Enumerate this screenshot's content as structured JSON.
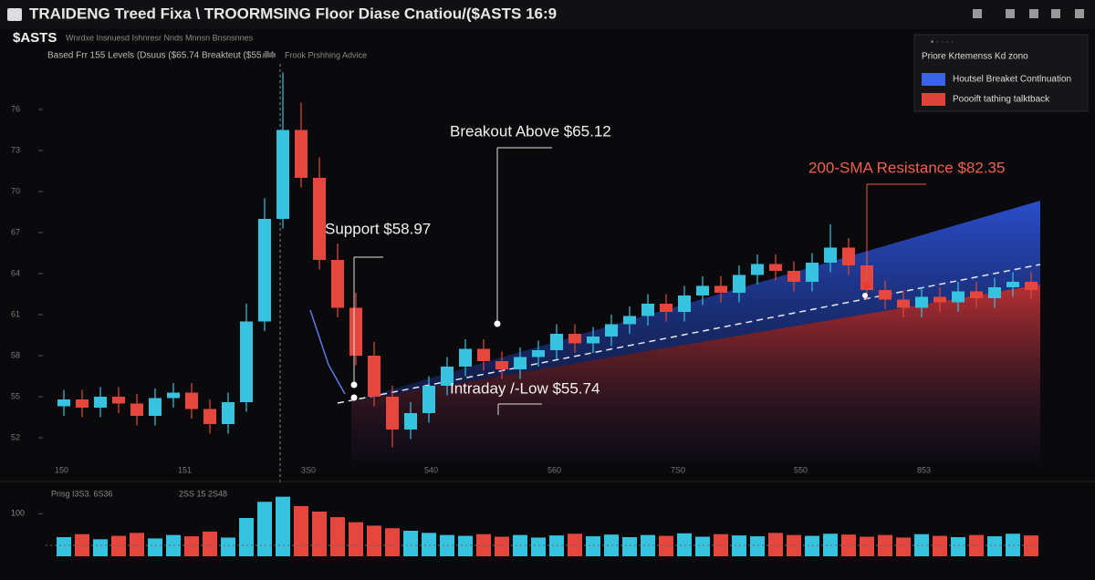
{
  "header": {
    "title": "TRAIDENG Treed Fixa \\ TROORMSING Floor Diase Cnatiou/($ASTS 16:9",
    "ticker": "$ASTS",
    "menu": "Wnrdxe   Insnuesd   Ishnresr   Nnds   Mnnsn   Bnsnsnnes",
    "subtitle": "Based Frr 155 Levels  (Dsuus ($65.74  Breakteut ($55.74",
    "subnote": "Frook Prshhing Advice"
  },
  "legend": {
    "title": "Priore   Krtemenss Kd zono",
    "items": [
      {
        "name": "Houtsel Breaket Contlnuation",
        "color": "#3b63e6"
      },
      {
        "name": "Poooift tathing talktback",
        "color": "#e0423c"
      }
    ]
  },
  "annotations": [
    "Support $58.97",
    "Breakout Above $65.12",
    "Intraday /-Low $55.74",
    "200-SMA Resistance $82.35"
  ],
  "volume_labels": [
    "Prisg I3S3. 6S36",
    "2SS 15 2S48"
  ],
  "chart_data": {
    "type": "candlestick",
    "up_color": "#35c3e0",
    "down_color": "#e5463d",
    "ylim": [
      50,
      80
    ],
    "yticks": [
      52,
      55,
      58,
      61,
      64,
      67,
      70,
      73,
      76
    ],
    "xtick_labels": [
      "150",
      "151",
      "3S0",
      "540",
      "560",
      "7S0",
      "550",
      "853"
    ],
    "open": [
      54.3,
      54.8,
      54.2,
      55.0,
      54.5,
      53.6,
      54.9,
      55.3,
      54.1,
      53.0,
      54.6,
      60.5,
      68.0,
      74.5,
      71.0,
      65.0,
      61.5,
      58.0,
      55.0,
      52.6,
      53.8,
      55.8,
      57.2,
      58.5,
      57.6,
      57.0,
      57.9,
      58.4,
      59.6,
      58.9,
      59.4,
      60.3,
      60.9,
      61.8,
      61.2,
      62.4,
      63.1,
      62.6,
      63.9,
      64.7,
      64.2,
      63.4,
      64.8,
      65.9,
      64.6,
      62.8,
      62.1,
      61.5,
      62.3,
      61.9,
      62.7,
      62.2,
      63.0,
      63.4
    ],
    "high": [
      55.5,
      55.5,
      55.7,
      55.7,
      55.2,
      55.6,
      56.0,
      56.0,
      54.8,
      55.3,
      61.8,
      69.5,
      78.7,
      76.5,
      72.5,
      66.2,
      62.6,
      59.0,
      55.8,
      54.6,
      56.5,
      57.9,
      59.2,
      59.2,
      58.3,
      58.6,
      59.1,
      60.3,
      60.3,
      60.1,
      61.0,
      61.6,
      62.5,
      62.5,
      63.1,
      63.8,
      63.8,
      64.6,
      65.4,
      65.4,
      64.9,
      65.5,
      67.6,
      66.6,
      65.3,
      63.5,
      62.8,
      63.0,
      63.0,
      63.4,
      63.4,
      63.7,
      64.1,
      64.1
    ],
    "low": [
      53.6,
      53.5,
      53.5,
      53.8,
      52.9,
      52.9,
      54.2,
      53.4,
      52.3,
      52.3,
      53.9,
      59.8,
      67.3,
      70.3,
      64.3,
      60.8,
      57.3,
      54.3,
      51.3,
      51.9,
      53.1,
      55.1,
      56.5,
      56.9,
      56.3,
      56.3,
      57.2,
      57.7,
      58.2,
      58.2,
      58.7,
      59.6,
      60.2,
      60.5,
      60.5,
      61.7,
      61.9,
      61.9,
      63.2,
      63.5,
      62.7,
      62.7,
      64.1,
      63.9,
      62.1,
      61.4,
      60.8,
      60.8,
      61.2,
      61.2,
      61.5,
      61.5,
      62.3,
      62.1
    ],
    "close": [
      54.8,
      54.2,
      55.0,
      54.5,
      53.6,
      54.9,
      55.3,
      54.1,
      53.0,
      54.6,
      60.5,
      68.0,
      74.5,
      71.0,
      65.0,
      61.5,
      58.0,
      55.0,
      52.6,
      53.8,
      55.8,
      57.2,
      58.5,
      57.6,
      57.0,
      57.9,
      58.4,
      59.6,
      58.9,
      59.4,
      60.3,
      60.9,
      61.8,
      61.2,
      62.4,
      63.1,
      62.6,
      63.9,
      64.7,
      64.2,
      63.4,
      64.8,
      65.9,
      64.6,
      62.8,
      62.1,
      61.5,
      62.3,
      61.9,
      62.7,
      62.2,
      63.0,
      63.4,
      62.8
    ],
    "volume": [
      45,
      52,
      40,
      48,
      55,
      42,
      50,
      47,
      58,
      44,
      90,
      128,
      140,
      118,
      105,
      92,
      80,
      72,
      66,
      60,
      55,
      50,
      48,
      52,
      46,
      50,
      44,
      49,
      53,
      47,
      51,
      45,
      50,
      48,
      54,
      46,
      52,
      49,
      47,
      55,
      50,
      48,
      53,
      51,
      46,
      50,
      44,
      52,
      48,
      45,
      50,
      47,
      53,
      49
    ],
    "vlim": [
      0,
      150
    ],
    "vticks": [
      100
    ]
  }
}
